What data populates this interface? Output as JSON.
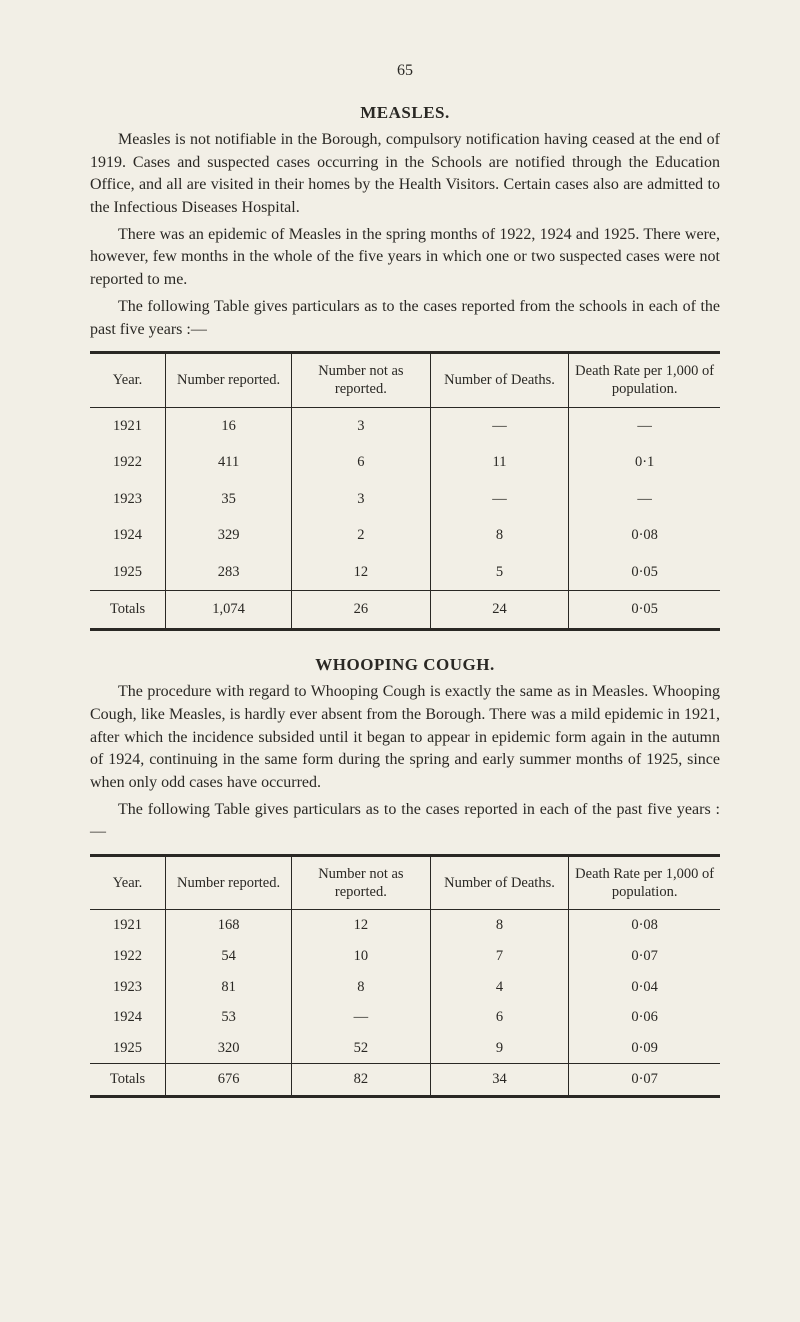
{
  "page_number": "65",
  "measles": {
    "heading": "MEASLES.",
    "p1": "Measles is not notifiable in the Borough, compulsory notification having ceased at the end of 1919. Cases and suspected cases occurring in the Schools are notified through the Education Office, and all are visited in their homes by the Health Visitors. Certain cases also are admitted to the Infectious Diseases Hospital.",
    "p2": "There was an epidemic of Measles in the spring months of 1922, 1924 and 1925. There were, however, few months in the whole of the five years in which one or two suspected cases were not reported to me.",
    "p3": "The following Table gives particulars as to the cases reported from the schools in each of the past five years :—",
    "table": {
      "columns": [
        "Year.",
        "Number reported.",
        "Number not as reported.",
        "Number of Deaths.",
        "Death Rate per 1,000 of population."
      ],
      "rows": [
        [
          "1921",
          "16",
          "3",
          "—",
          "—"
        ],
        [
          "1922",
          "411",
          "6",
          "11",
          "0·1"
        ],
        [
          "1923",
          "35",
          "3",
          "—",
          "—"
        ],
        [
          "1924",
          "329",
          "2",
          "8",
          "0·08"
        ],
        [
          "1925",
          "283",
          "12",
          "5",
          "0·05"
        ]
      ],
      "totals": [
        "Totals",
        "1,074",
        "26",
        "24",
        "0·05"
      ]
    }
  },
  "whooping": {
    "heading": "WHOOPING COUGH.",
    "p1": "The procedure with regard to Whooping Cough is exactly the same as in Measles. Whooping Cough, like Measles, is hardly ever absent from the Borough. There was a mild epidemic in 1921, after which the incidence subsided until it began to appear in epidemic form again in the autumn of 1924, continuing in the same form during the spring and early summer months of 1925, since when only odd cases have occurred.",
    "p2": "The following Table gives particulars as to the cases reported in each of the past five years :—",
    "table": {
      "columns": [
        "Year.",
        "Number reported.",
        "Number not as reported.",
        "Number of Deaths.",
        "Death Rate per 1,000 of population."
      ],
      "rows": [
        [
          "1921",
          "168",
          "12",
          "8",
          "0·08"
        ],
        [
          "1922",
          "54",
          "10",
          "7",
          "0·07"
        ],
        [
          "1923",
          "81",
          "8",
          "4",
          "0·04"
        ],
        [
          "1924",
          "53",
          "—",
          "6",
          "0·06"
        ],
        [
          "1925",
          "320",
          "52",
          "9",
          "0·09"
        ]
      ],
      "totals": [
        "Totals",
        "676",
        "82",
        "34",
        "0·07"
      ]
    }
  }
}
